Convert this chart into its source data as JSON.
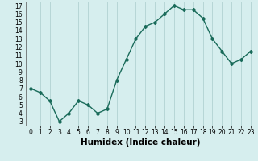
{
  "x": [
    0,
    1,
    2,
    3,
    4,
    5,
    6,
    7,
    8,
    9,
    10,
    11,
    12,
    13,
    14,
    15,
    16,
    17,
    18,
    19,
    20,
    21,
    22,
    23
  ],
  "y": [
    7.0,
    6.5,
    5.5,
    3.0,
    4.0,
    5.5,
    5.0,
    4.0,
    4.5,
    8.0,
    10.5,
    13.0,
    14.5,
    15.0,
    16.0,
    17.0,
    16.5,
    16.5,
    15.5,
    13.0,
    11.5,
    10.0,
    10.5,
    11.5
  ],
  "line_color": "#1a6b5a",
  "marker": "D",
  "marker_size": 2.0,
  "bg_color": "#d6eeee",
  "grid_color": "#aacccc",
  "xlabel": "Humidex (Indice chaleur)",
  "xlim": [
    -0.5,
    23.5
  ],
  "ylim": [
    2.5,
    17.5
  ],
  "yticks": [
    3,
    4,
    5,
    6,
    7,
    8,
    9,
    10,
    11,
    12,
    13,
    14,
    15,
    16,
    17
  ],
  "xticks": [
    0,
    1,
    2,
    3,
    4,
    5,
    6,
    7,
    8,
    9,
    10,
    11,
    12,
    13,
    14,
    15,
    16,
    17,
    18,
    19,
    20,
    21,
    22,
    23
  ],
  "tick_fontsize": 5.5,
  "xlabel_fontsize": 7.5
}
